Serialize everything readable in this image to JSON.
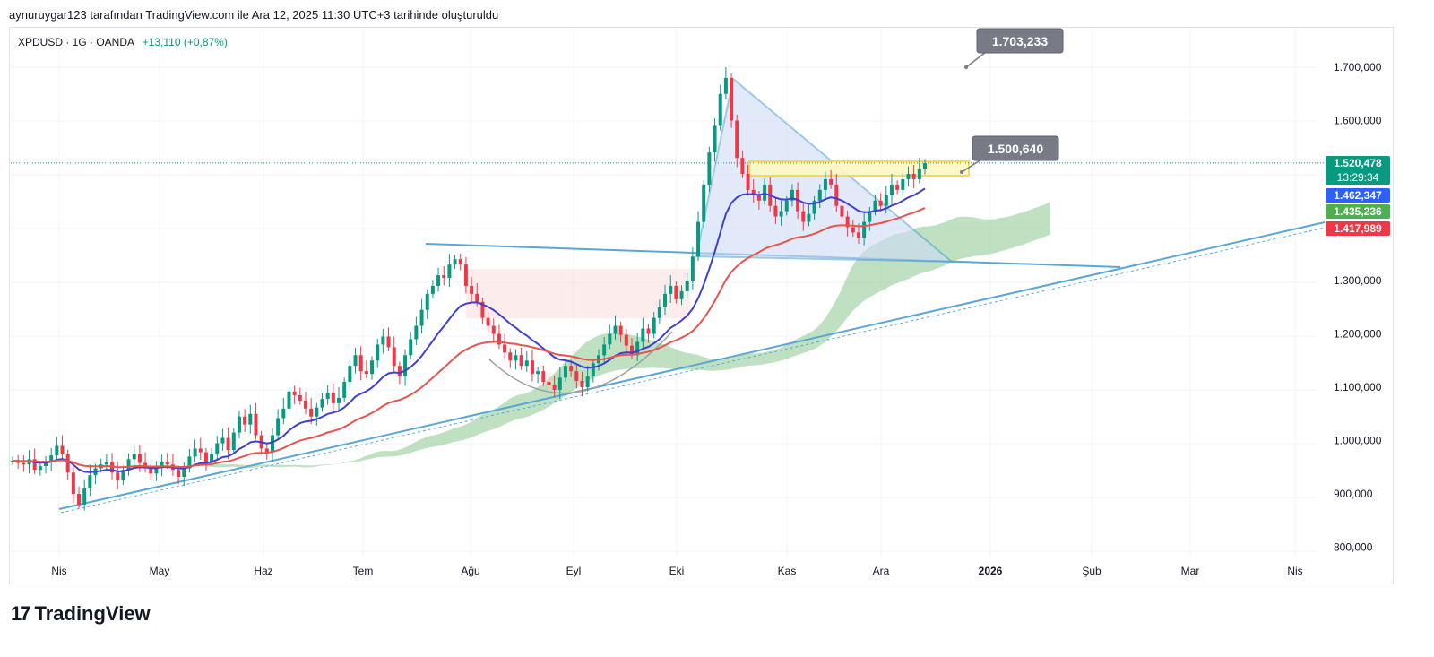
{
  "header": "aynuruygar123 tarafından TradingView.com ile Ara 12, 2025 11:30 UTC+3 tarihinde oluşturuldu",
  "legend": {
    "symbol": "XPDUSD · 1G · OANDA",
    "change": "+13,110 (+0,87%)"
  },
  "brand": "TradingView",
  "colors": {
    "up": "#089981",
    "down": "#f23645",
    "ema_fast": "#3f3fd1",
    "ema_slow": "#e8534f",
    "cloud_bull": "#8bc98f",
    "cloud_bear": "#f6c6c6",
    "trend": "#5aa7d6"
  },
  "chart_data": {
    "type": "candlestick",
    "symbol": "XPDUSD",
    "timeframe": "1G",
    "x_labels": [
      "Nis",
      "May",
      "Haz",
      "Tem",
      "Ağu",
      "Eyl",
      "Eki",
      "Kas",
      "Ara",
      "2026",
      "Şub",
      "Mar",
      "Nis"
    ],
    "y_ticks": [
      "1.700,000",
      "1.600,000",
      "1.300,000",
      "1.200,000",
      "1.100,000",
      "1.000,000",
      "900,000",
      "800,000"
    ],
    "y_range": [
      780,
      1760
    ],
    "callouts": [
      "1.703,233",
      "1.500,640"
    ],
    "price_badges": [
      {
        "value": "1.520,478",
        "sub": "13:29:34",
        "color": "#089981"
      },
      {
        "value": "1.462,347",
        "color": "#2962ff"
      },
      {
        "value": "1.435,236",
        "color": "#4caf50"
      },
      {
        "value": "1.417,989",
        "color": "#f23645"
      }
    ],
    "series_close": [
      962,
      958,
      955,
      965,
      945,
      952,
      960,
      972,
      990,
      975,
      940,
      900,
      880,
      910,
      935,
      948,
      955,
      960,
      940,
      925,
      945,
      965,
      975,
      958,
      948,
      938,
      950,
      960,
      955,
      945,
      932,
      948,
      970,
      985,
      978,
      960,
      975,
      995,
      1005,
      982,
      1015,
      1045,
      1030,
      1050,
      1010,
      985,
      978,
      1010,
      1042,
      1060,
      1092,
      1085,
      1075,
      1060,
      1045,
      1062,
      1078,
      1090,
      1070,
      1080,
      1110,
      1140,
      1160,
      1130,
      1125,
      1150,
      1180,
      1195,
      1175,
      1140,
      1120,
      1160,
      1190,
      1215,
      1245,
      1275,
      1290,
      1310,
      1305,
      1330,
      1340,
      1330,
      1290,
      1275,
      1260,
      1230,
      1215,
      1200,
      1180,
      1165,
      1150,
      1160,
      1140,
      1150,
      1125,
      1130,
      1110,
      1105,
      1095,
      1118,
      1140,
      1130,
      1112,
      1100,
      1120,
      1145,
      1160,
      1180,
      1200,
      1215,
      1198,
      1178,
      1160,
      1185,
      1210,
      1200,
      1230,
      1250,
      1275,
      1290,
      1265,
      1280,
      1300,
      1345,
      1410,
      1480,
      1540,
      1590,
      1650,
      1680,
      1600,
      1530,
      1500,
      1470,
      1460,
      1450,
      1480,
      1440,
      1420,
      1430,
      1450,
      1470,
      1430,
      1410,
      1425,
      1450,
      1470,
      1490,
      1480,
      1440,
      1420,
      1400,
      1390,
      1380,
      1410,
      1430,
      1450,
      1440,
      1460,
      1480,
      1470,
      1490,
      1500,
      1490,
      1510,
      1520
    ]
  }
}
